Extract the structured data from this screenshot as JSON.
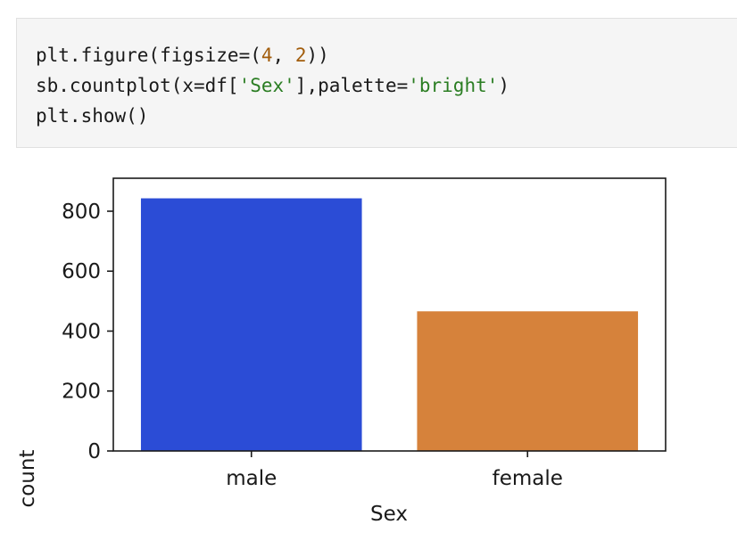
{
  "code_cell": {
    "lines": [
      [
        {
          "t": "plt.figure(figsize=("
        },
        {
          "t": "4",
          "k": "num"
        },
        {
          "t": ", "
        },
        {
          "t": "2",
          "k": "num"
        },
        {
          "t": "))"
        }
      ],
      [
        {
          "t": "sb.countplot(x=df["
        },
        {
          "t": "'Sex'",
          "k": "str"
        },
        {
          "t": "],palette="
        },
        {
          "t": "'bright'",
          "k": "str"
        },
        {
          "t": ")"
        }
      ],
      [
        {
          "t": "plt.show()"
        }
      ]
    ]
  },
  "chart_data": {
    "type": "bar",
    "categories": [
      "male",
      "female"
    ],
    "values": [
      843,
      466
    ],
    "colors": [
      "#2b4cd6",
      "#d6823b"
    ],
    "title": "",
    "xlabel": "Sex",
    "ylabel": "count",
    "ylim": [
      0,
      910
    ],
    "yticks": [
      0,
      200,
      400,
      600,
      800
    ],
    "grid": false
  }
}
